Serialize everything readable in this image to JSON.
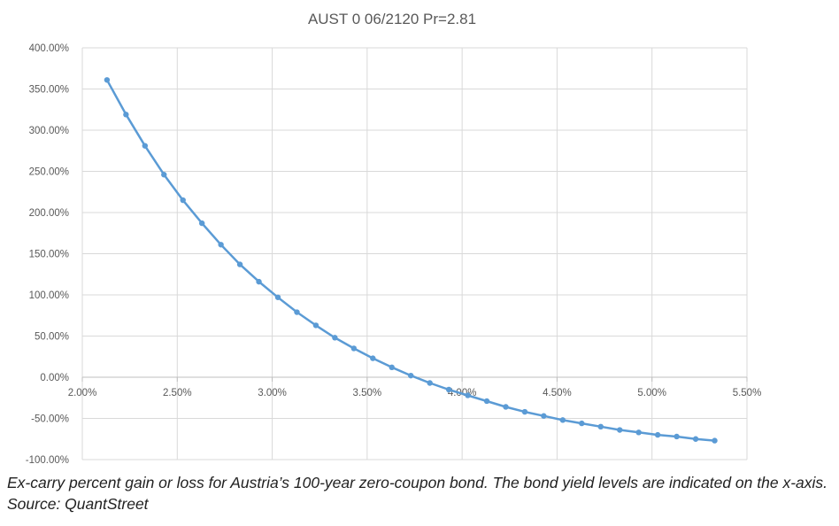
{
  "chart_data": {
    "type": "line",
    "title": "AUST 0 06/2120 Pr=2.81",
    "xlabel": "",
    "ylabel": "",
    "xlim": [
      0.02,
      0.055
    ],
    "ylim": [
      -1.0,
      4.0
    ],
    "x_ticks": [
      0.02,
      0.025,
      0.03,
      0.035,
      0.04,
      0.045,
      0.05,
      0.055
    ],
    "x_tick_labels": [
      "2.00%",
      "2.50%",
      "3.00%",
      "3.50%",
      "4.00%",
      "4.50%",
      "5.00%",
      "5.50%"
    ],
    "y_ticks": [
      4.0,
      3.5,
      3.0,
      2.5,
      2.0,
      1.5,
      1.0,
      0.5,
      0.0,
      -0.5,
      -1.0
    ],
    "y_tick_labels": [
      "400.00%",
      "350.00%",
      "300.00%",
      "250.00%",
      "200.00%",
      "150.00%",
      "100.00%",
      "50.00%",
      "0.00%",
      "-50.00%",
      "-100.00%"
    ],
    "grid": true,
    "legend": "none",
    "series": [
      {
        "color": "#5B9BD5",
        "x": [
          0.0213,
          0.0223,
          0.0233,
          0.0243,
          0.0253,
          0.0263,
          0.0273,
          0.0283,
          0.0293,
          0.0303,
          0.0313,
          0.0323,
          0.0333,
          0.0343,
          0.0353,
          0.0363,
          0.0373,
          0.0383,
          0.0393,
          0.0403,
          0.0413,
          0.0423,
          0.0433,
          0.0443,
          0.0453,
          0.0463,
          0.0473,
          0.0483,
          0.0493,
          0.0503,
          0.0513,
          0.0523,
          0.0533
        ],
        "y": [
          3.61,
          3.19,
          2.81,
          2.46,
          2.15,
          1.87,
          1.61,
          1.37,
          1.16,
          0.97,
          0.79,
          0.63,
          0.48,
          0.35,
          0.23,
          0.12,
          0.02,
          -0.07,
          -0.15,
          -0.22,
          -0.29,
          -0.36,
          -0.42,
          -0.47,
          -0.52,
          -0.56,
          -0.6,
          -0.64,
          -0.67,
          -0.7,
          -0.72,
          -0.75,
          -0.77
        ]
      }
    ]
  },
  "caption": "Ex-carry percent gain or loss for Austria’s 100-year zero-coupon bond. The bond yield levels are indicated on the x-axis. Source: QuantStreet"
}
